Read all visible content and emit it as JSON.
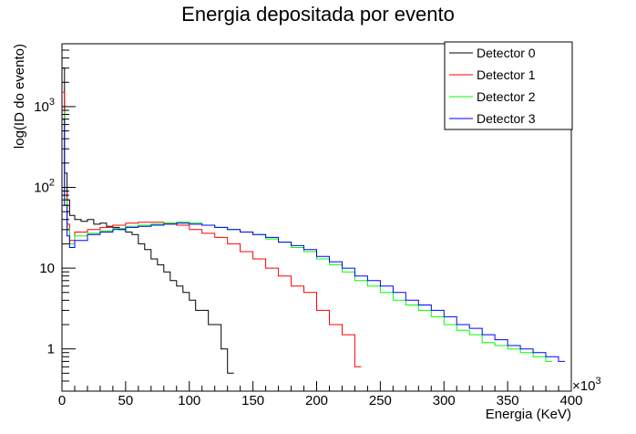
{
  "chart_data": {
    "type": "line",
    "title": "Energia depositada por evento",
    "xlabel": "Energia (KeV)",
    "ylabel": "log(ID do evento)",
    "x_multiplier_label": "×10",
    "x_multiplier_exp": "3",
    "xlim": [
      0,
      400
    ],
    "ylim": [
      0.3,
      6000
    ],
    "yscale": "log",
    "x_ticks": [
      {
        "v": 0,
        "label": "0"
      },
      {
        "v": 50,
        "label": "50"
      },
      {
        "v": 100,
        "label": "100"
      },
      {
        "v": 150,
        "label": "150"
      },
      {
        "v": 200,
        "label": "200"
      },
      {
        "v": 250,
        "label": "250"
      },
      {
        "v": 300,
        "label": "300"
      },
      {
        "v": 350,
        "label": "350"
      },
      {
        "v": 400,
        "label": "400"
      }
    ],
    "y_ticks": [
      {
        "v": 1,
        "label": "1",
        "exp": ""
      },
      {
        "v": 10,
        "label": "10",
        "exp": ""
      },
      {
        "v": 100,
        "label": "10",
        "exp": "2"
      },
      {
        "v": 1000,
        "label": "10",
        "exp": "3"
      }
    ],
    "legend_position": "top-right",
    "series": [
      {
        "name": "Detector 0",
        "color": "#000000",
        "x": [
          0,
          2,
          4,
          6,
          10,
          15,
          20,
          25,
          30,
          35,
          40,
          45,
          50,
          55,
          60,
          65,
          70,
          75,
          80,
          85,
          90,
          95,
          100,
          105,
          110,
          115,
          120,
          125,
          130
        ],
        "y": [
          3000,
          150,
          70,
          45,
          40,
          38,
          40,
          35,
          36,
          33,
          32,
          30,
          28,
          26,
          20,
          17,
          13,
          11,
          9,
          7,
          6,
          5,
          4,
          3,
          3,
          2,
          2,
          1,
          0.5
        ]
      },
      {
        "name": "Detector 1",
        "color": "#ff0000",
        "x": [
          0,
          2,
          4,
          6,
          10,
          20,
          30,
          40,
          50,
          60,
          70,
          80,
          90,
          100,
          110,
          120,
          130,
          140,
          150,
          160,
          170,
          180,
          190,
          200,
          210,
          220,
          230
        ],
        "y": [
          1500,
          90,
          35,
          22,
          28,
          30,
          32,
          34,
          36,
          37,
          37,
          36,
          34,
          30,
          27,
          24,
          20,
          16,
          13,
          10,
          8,
          6,
          5,
          3,
          2,
          1.5,
          0.6
        ]
      },
      {
        "name": "Detector 2",
        "color": "#00ff00",
        "x": [
          0,
          2,
          4,
          6,
          10,
          20,
          30,
          40,
          50,
          60,
          70,
          80,
          90,
          100,
          110,
          120,
          130,
          140,
          150,
          160,
          170,
          180,
          190,
          200,
          210,
          220,
          230,
          240,
          250,
          260,
          270,
          280,
          290,
          300,
          310,
          320,
          330,
          340,
          350,
          360,
          370,
          380
        ],
        "y": [
          900,
          70,
          30,
          20,
          25,
          27,
          29,
          31,
          33,
          34,
          35,
          36,
          37,
          36,
          34,
          32,
          30,
          28,
          26,
          23,
          21,
          18,
          16,
          13,
          11,
          9,
          7,
          6,
          5,
          4,
          3.5,
          3,
          2.5,
          2,
          1.7,
          1.5,
          1.2,
          1.1,
          1,
          0.9,
          0.8,
          0.7
        ]
      },
      {
        "name": "Detector 3",
        "color": "#0000ff",
        "x": [
          0,
          2,
          4,
          6,
          10,
          20,
          30,
          40,
          50,
          60,
          70,
          80,
          90,
          100,
          110,
          120,
          130,
          140,
          150,
          160,
          170,
          180,
          190,
          200,
          210,
          220,
          230,
          240,
          250,
          260,
          270,
          280,
          290,
          300,
          310,
          320,
          330,
          340,
          350,
          360,
          370,
          380,
          390
        ],
        "y": [
          700,
          60,
          25,
          18,
          22,
          26,
          28,
          30,
          32,
          33,
          34,
          35,
          36,
          35,
          34,
          32,
          30,
          28,
          26,
          24,
          21,
          19,
          17,
          14,
          12,
          10,
          8,
          7,
          6,
          5,
          4,
          3.5,
          3,
          2.5,
          2,
          1.8,
          1.5,
          1.3,
          1.1,
          1,
          0.9,
          0.8,
          0.7
        ]
      }
    ]
  }
}
